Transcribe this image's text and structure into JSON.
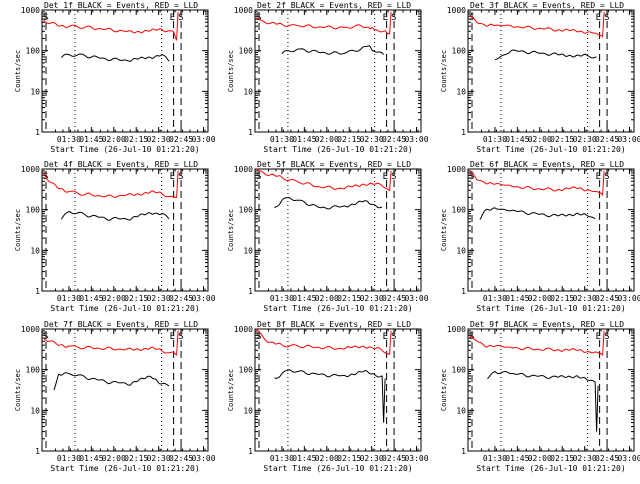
{
  "chart_data": [
    {
      "type": "line",
      "title": "Det 1f BLACK = Events, RED = LLD",
      "ylabel": "Counts/sec",
      "xlabel": "Start Time (26-Jul-10 01:21:20)",
      "xticks": [
        "01:30",
        "01:45",
        "02:00",
        "02:15",
        "02:30",
        "02:45",
        "03:00"
      ],
      "yticks": [
        "1",
        "10",
        "100",
        "1000"
      ],
      "ylim": [
        1,
        1000
      ],
      "xlim_minutes": [
        -9,
        102
      ],
      "markers": [
        "E",
        "S"
      ],
      "series": [
        {
          "name": "LLD",
          "color": "#ff0000",
          "x": [
            -8,
            -3,
            2,
            9,
            20,
            35,
            50,
            64,
            71,
            76,
            79,
            81,
            82
          ],
          "values": [
            550,
            470,
            420,
            400,
            380,
            330,
            290,
            310,
            330,
            310,
            270,
            180,
            900
          ]
        },
        {
          "name": "Events",
          "color": "#000000",
          "x": [
            4,
            9,
            20,
            35,
            50,
            64,
            71,
            76
          ],
          "values": [
            70,
            80,
            75,
            62,
            58,
            70,
            80,
            55
          ]
        }
      ]
    },
    {
      "type": "line",
      "title": "Det 2f BLACK = Events, RED = LLD",
      "ylabel": "Counts/sec",
      "xlabel": "Start Time (26-Jul-10 01:21:20)",
      "xticks": [
        "01:30",
        "01:45",
        "02:00",
        "02:15",
        "02:30",
        "02:45",
        "03:00"
      ],
      "yticks": [
        "1",
        "10",
        "100",
        "1000"
      ],
      "ylim": [
        1,
        1000
      ],
      "xlim_minutes": [
        -9,
        102
      ],
      "markers": [
        "E",
        "S"
      ],
      "series": [
        {
          "name": "LLD",
          "color": "#ff0000",
          "x": [
            -8,
            -3,
            2,
            9,
            20,
            35,
            50,
            61,
            67,
            71,
            77,
            81,
            82
          ],
          "values": [
            650,
            520,
            460,
            440,
            410,
            380,
            370,
            400,
            350,
            330,
            310,
            260,
            900
          ]
        },
        {
          "name": "Events",
          "color": "#000000",
          "x": [
            9,
            14,
            20,
            35,
            50,
            61,
            67,
            71,
            77
          ],
          "values": [
            85,
            100,
            110,
            90,
            85,
            110,
            140,
            95,
            80
          ]
        }
      ]
    },
    {
      "type": "line",
      "title": "Det 3f BLACK = Events, RED = LLD",
      "ylabel": "Counts/sec",
      "xlabel": "Start Time (26-Jul-10 01:21:20)",
      "xticks": [
        "01:30",
        "01:45",
        "02:00",
        "02:15",
        "02:30",
        "02:45",
        "03:00"
      ],
      "yticks": [
        "1",
        "10",
        "100",
        "1000"
      ],
      "ylim": [
        1,
        1000
      ],
      "xlim_minutes": [
        -9,
        102
      ],
      "markers": [
        "E",
        "S"
      ],
      "series": [
        {
          "name": "LLD",
          "color": "#ff0000",
          "x": [
            -8,
            -3,
            2,
            9,
            20,
            35,
            50,
            64,
            71,
            76,
            79,
            81,
            82
          ],
          "values": [
            700,
            500,
            440,
            420,
            400,
            360,
            330,
            300,
            290,
            270,
            250,
            220,
            900
          ]
        },
        {
          "name": "Events",
          "color": "#000000",
          "x": [
            9,
            20,
            35,
            50,
            64,
            71,
            77
          ],
          "values": [
            60,
            100,
            90,
            80,
            75,
            75,
            70
          ]
        }
      ]
    },
    {
      "type": "line",
      "title": "Det 4f BLACK = Events, RED = LLD",
      "ylabel": "Counts/sec",
      "xlabel": "Start Time (26-Jul-10 01:21:20)",
      "xticks": [
        "01:30",
        "01:45",
        "02:00",
        "02:15",
        "02:30",
        "02:45",
        "03:00"
      ],
      "yticks": [
        "1",
        "10",
        "100",
        "1000"
      ],
      "ylim": [
        1,
        1000
      ],
      "xlim_minutes": [
        -9,
        102
      ],
      "markers": [
        "E",
        "S"
      ],
      "series": [
        {
          "name": "LLD",
          "color": "#ff0000",
          "x": [
            -8,
            -3,
            2,
            9,
            20,
            35,
            50,
            64,
            71,
            76,
            79,
            81,
            82
          ],
          "values": [
            800,
            450,
            340,
            280,
            240,
            210,
            230,
            270,
            250,
            210,
            190,
            200,
            900
          ]
        },
        {
          "name": "Events",
          "color": "#000000",
          "x": [
            4,
            9,
            20,
            35,
            50,
            64,
            71,
            76
          ],
          "values": [
            60,
            90,
            75,
            60,
            60,
            85,
            80,
            60
          ]
        }
      ]
    },
    {
      "type": "line",
      "title": "Det 5f BLACK = Events, RED = LLD",
      "ylabel": "Counts/sec",
      "xlabel": "Start Time (26-Jul-10 01:21:20)",
      "xticks": [
        "01:30",
        "01:45",
        "02:00",
        "02:15",
        "02:30",
        "02:45",
        "03:00"
      ],
      "yticks": [
        "1",
        "10",
        "100",
        "1000"
      ],
      "ylim": [
        1,
        1000
      ],
      "xlim_minutes": [
        -9,
        102
      ],
      "markers": [
        "E",
        "S"
      ],
      "series": [
        {
          "name": "LLD",
          "color": "#ff0000",
          "x": [
            -8,
            -3,
            2,
            9,
            20,
            35,
            50,
            64,
            71,
            76,
            79,
            81,
            82
          ],
          "values": [
            1000,
            800,
            700,
            620,
            480,
            360,
            330,
            430,
            430,
            390,
            350,
            300,
            900
          ]
        },
        {
          "name": "Events",
          "color": "#000000",
          "x": [
            4,
            9,
            14,
            20,
            35,
            50,
            64,
            71,
            76
          ],
          "values": [
            110,
            170,
            200,
            170,
            110,
            120,
            160,
            130,
            115
          ]
        }
      ]
    },
    {
      "type": "line",
      "title": "Det 6f BLACK = Events, RED = LLD",
      "ylabel": "Counts/sec",
      "xlabel": "Start Time (26-Jul-10 01:21:20)",
      "xticks": [
        "01:30",
        "01:45",
        "02:00",
        "02:15",
        "02:30",
        "02:45",
        "03:00"
      ],
      "yticks": [
        "1",
        "10",
        "100",
        "1000"
      ],
      "ylim": [
        1,
        1000
      ],
      "xlim_minutes": [
        -9,
        102
      ],
      "markers": [
        "E",
        "S"
      ],
      "series": [
        {
          "name": "LLD",
          "color": "#ff0000",
          "x": [
            -8,
            -3,
            2,
            9,
            20,
            35,
            50,
            64,
            71,
            76,
            79,
            81,
            82
          ],
          "values": [
            900,
            550,
            480,
            430,
            380,
            330,
            310,
            340,
            310,
            280,
            270,
            230,
            900
          ]
        },
        {
          "name": "Events",
          "color": "#000000",
          "x": [
            -1,
            2,
            9,
            20,
            35,
            50,
            64,
            71,
            76
          ],
          "values": [
            60,
            90,
            110,
            95,
            80,
            70,
            80,
            70,
            60
          ]
        }
      ]
    },
    {
      "type": "line",
      "title": "Det 7f BLACK = Events, RED = LLD",
      "ylabel": "Counts/sec",
      "xlabel": "Start Time (26-Jul-10 01:21:20)",
      "xticks": [
        "01:30",
        "01:45",
        "02:00",
        "02:15",
        "02:30",
        "02:45",
        "03:00"
      ],
      "yticks": [
        "1",
        "10",
        "100",
        "1000"
      ],
      "ylim": [
        1,
        1000
      ],
      "xlim_minutes": [
        -9,
        102
      ],
      "markers": [
        "E",
        "S"
      ],
      "series": [
        {
          "name": "LLD",
          "color": "#ff0000",
          "x": [
            -8,
            -3,
            2,
            9,
            20,
            35,
            50,
            64,
            71,
            76,
            79,
            81,
            82
          ],
          "values": [
            600,
            500,
            400,
            380,
            350,
            330,
            310,
            340,
            290,
            260,
            250,
            230,
            900
          ]
        },
        {
          "name": "Events",
          "color": "#000000",
          "x": [
            -1,
            2,
            9,
            20,
            35,
            50,
            64,
            71,
            76
          ],
          "values": [
            30,
            75,
            80,
            65,
            50,
            45,
            70,
            45,
            40
          ]
        }
      ]
    },
    {
      "type": "line",
      "title": "Det 8f BLACK = Events, RED = LLD",
      "ylabel": "Counts/sec",
      "xlabel": "Start Time (26-Jul-10 01:21:20)",
      "xticks": [
        "01:30",
        "01:45",
        "02:00",
        "02:15",
        "02:30",
        "02:45",
        "03:00"
      ],
      "yticks": [
        "1",
        "10",
        "100",
        "1000"
      ],
      "ylim": [
        1,
        1000
      ],
      "xlim_minutes": [
        -9,
        102
      ],
      "markers": [
        "E",
        "S"
      ],
      "series": [
        {
          "name": "LLD",
          "color": "#ff0000",
          "x": [
            -8,
            -3,
            2,
            9,
            20,
            35,
            50,
            64,
            71,
            76,
            79,
            81,
            82
          ],
          "values": [
            1000,
            600,
            450,
            400,
            380,
            350,
            330,
            380,
            340,
            300,
            270,
            240,
            900
          ]
        },
        {
          "name": "Events",
          "color": "#000000",
          "x": [
            4,
            9,
            14,
            20,
            35,
            50,
            64,
            71,
            76,
            77,
            78
          ],
          "values": [
            60,
            80,
            100,
            90,
            75,
            70,
            90,
            75,
            70,
            5,
            60
          ]
        }
      ]
    },
    {
      "type": "line",
      "title": "Det 9f BLACK = Events, RED = LLD",
      "ylabel": "Counts/sec",
      "xlabel": "Start Time (26-Jul-10 01:21:20)",
      "xticks": [
        "01:30",
        "01:45",
        "02:00",
        "02:15",
        "02:30",
        "02:45",
        "03:00"
      ],
      "yticks": [
        "1",
        "10",
        "100",
        "1000"
      ],
      "ylim": [
        1,
        1000
      ],
      "xlim_minutes": [
        -9,
        102
      ],
      "markers": [
        "E",
        "S"
      ],
      "series": [
        {
          "name": "LLD",
          "color": "#ff0000",
          "x": [
            -8,
            -3,
            2,
            9,
            20,
            35,
            50,
            64,
            71,
            76,
            79,
            81,
            82
          ],
          "values": [
            650,
            500,
            400,
            380,
            350,
            320,
            310,
            300,
            280,
            270,
            250,
            230,
            900
          ]
        },
        {
          "name": "Events",
          "color": "#000000",
          "x": [
            4,
            9,
            14,
            20,
            35,
            50,
            64,
            71,
            76,
            77,
            78
          ],
          "values": [
            60,
            90,
            85,
            80,
            70,
            65,
            70,
            55,
            50,
            3,
            40
          ]
        }
      ]
    }
  ]
}
